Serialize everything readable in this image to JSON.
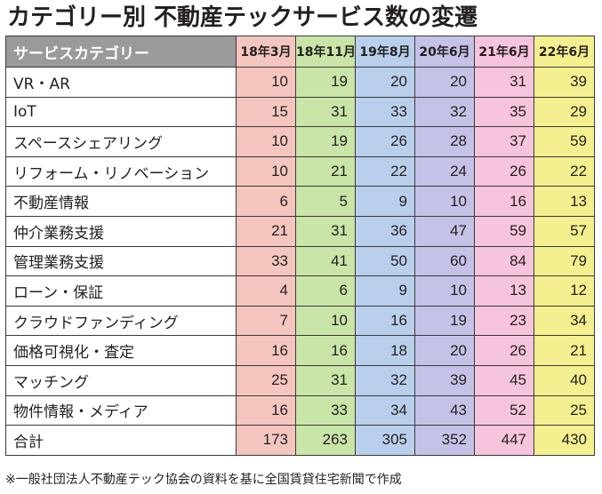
{
  "title": "カテゴリー別 不動産テックサービス数の変遷",
  "table": {
    "header_label": "サービスカテゴリー",
    "periods": [
      "18年3月",
      "18年11月",
      "19年8月",
      "20年6月",
      "21年6月",
      "22年6月"
    ],
    "column_colors": [
      "#f4c6bf",
      "#c9e5a8",
      "#b9cfeb",
      "#c4c2e6",
      "#f6c4dc",
      "#f5f08f"
    ],
    "rows": [
      {
        "category": "VR・AR",
        "values": [
          "10",
          "19",
          "20",
          "20",
          "31",
          "39"
        ]
      },
      {
        "category": "IoT",
        "values": [
          "15",
          "31",
          "33",
          "32",
          "35",
          "29"
        ]
      },
      {
        "category": "スペースシェアリング",
        "values": [
          "10",
          "19",
          "26",
          "28",
          "37",
          "59"
        ]
      },
      {
        "category": "リフォーム・リノベーション",
        "values": [
          "10",
          "21",
          "22",
          "24",
          "26",
          "22"
        ]
      },
      {
        "category": "不動産情報",
        "values": [
          "6",
          "5",
          "9",
          "10",
          "16",
          "13"
        ]
      },
      {
        "category": "仲介業務支援",
        "values": [
          "21",
          "31",
          "36",
          "47",
          "59",
          "57"
        ]
      },
      {
        "category": "管理業務支援",
        "values": [
          "33",
          "41",
          "50",
          "60",
          "84",
          "79"
        ]
      },
      {
        "category": "ローン・保証",
        "values": [
          "4",
          "6",
          "9",
          "10",
          "13",
          "12"
        ]
      },
      {
        "category": "クラウドファンディング",
        "values": [
          "7",
          "10",
          "16",
          "19",
          "23",
          "34"
        ]
      },
      {
        "category": "価格可視化・査定",
        "values": [
          "16",
          "16",
          "18",
          "20",
          "26",
          "21"
        ]
      },
      {
        "category": "マッチング",
        "values": [
          "25",
          "31",
          "32",
          "39",
          "45",
          "40"
        ]
      },
      {
        "category": "物件情報・メディア",
        "values": [
          "16",
          "33",
          "34",
          "43",
          "52",
          "25"
        ]
      }
    ],
    "total": {
      "category": "合計",
      "values": [
        "173",
        "263",
        "305",
        "352",
        "447",
        "430"
      ]
    }
  },
  "footnote": "※一般社団法人不動産テック協会の資料を基に全国賃貸住宅新聞で作成"
}
